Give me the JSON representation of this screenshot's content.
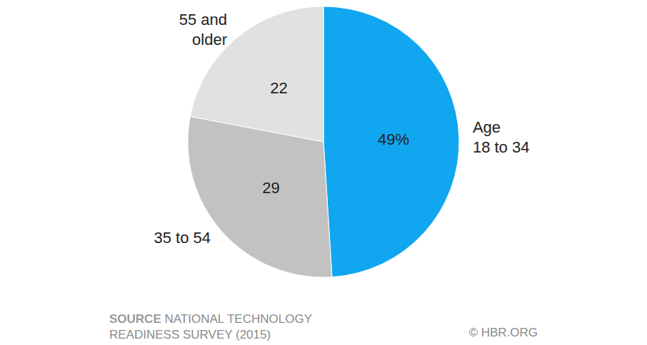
{
  "chart_data": {
    "type": "pie",
    "categories": [
      "Age\n18 to 34",
      "35 to 54",
      "55 and\nolder"
    ],
    "values": [
      49,
      29,
      22
    ],
    "value_labels": [
      "49%",
      "29",
      "22"
    ],
    "colors": [
      "#10a6f0",
      "#c2c2c2",
      "#e1e1e1"
    ],
    "data_labels": true,
    "legend": false,
    "source": {
      "label": "SOURCE",
      "text": "NATIONAL TECHNOLOGY\nREADINESS SURVEY (2015)"
    },
    "credit": "© HBR.ORG"
  }
}
